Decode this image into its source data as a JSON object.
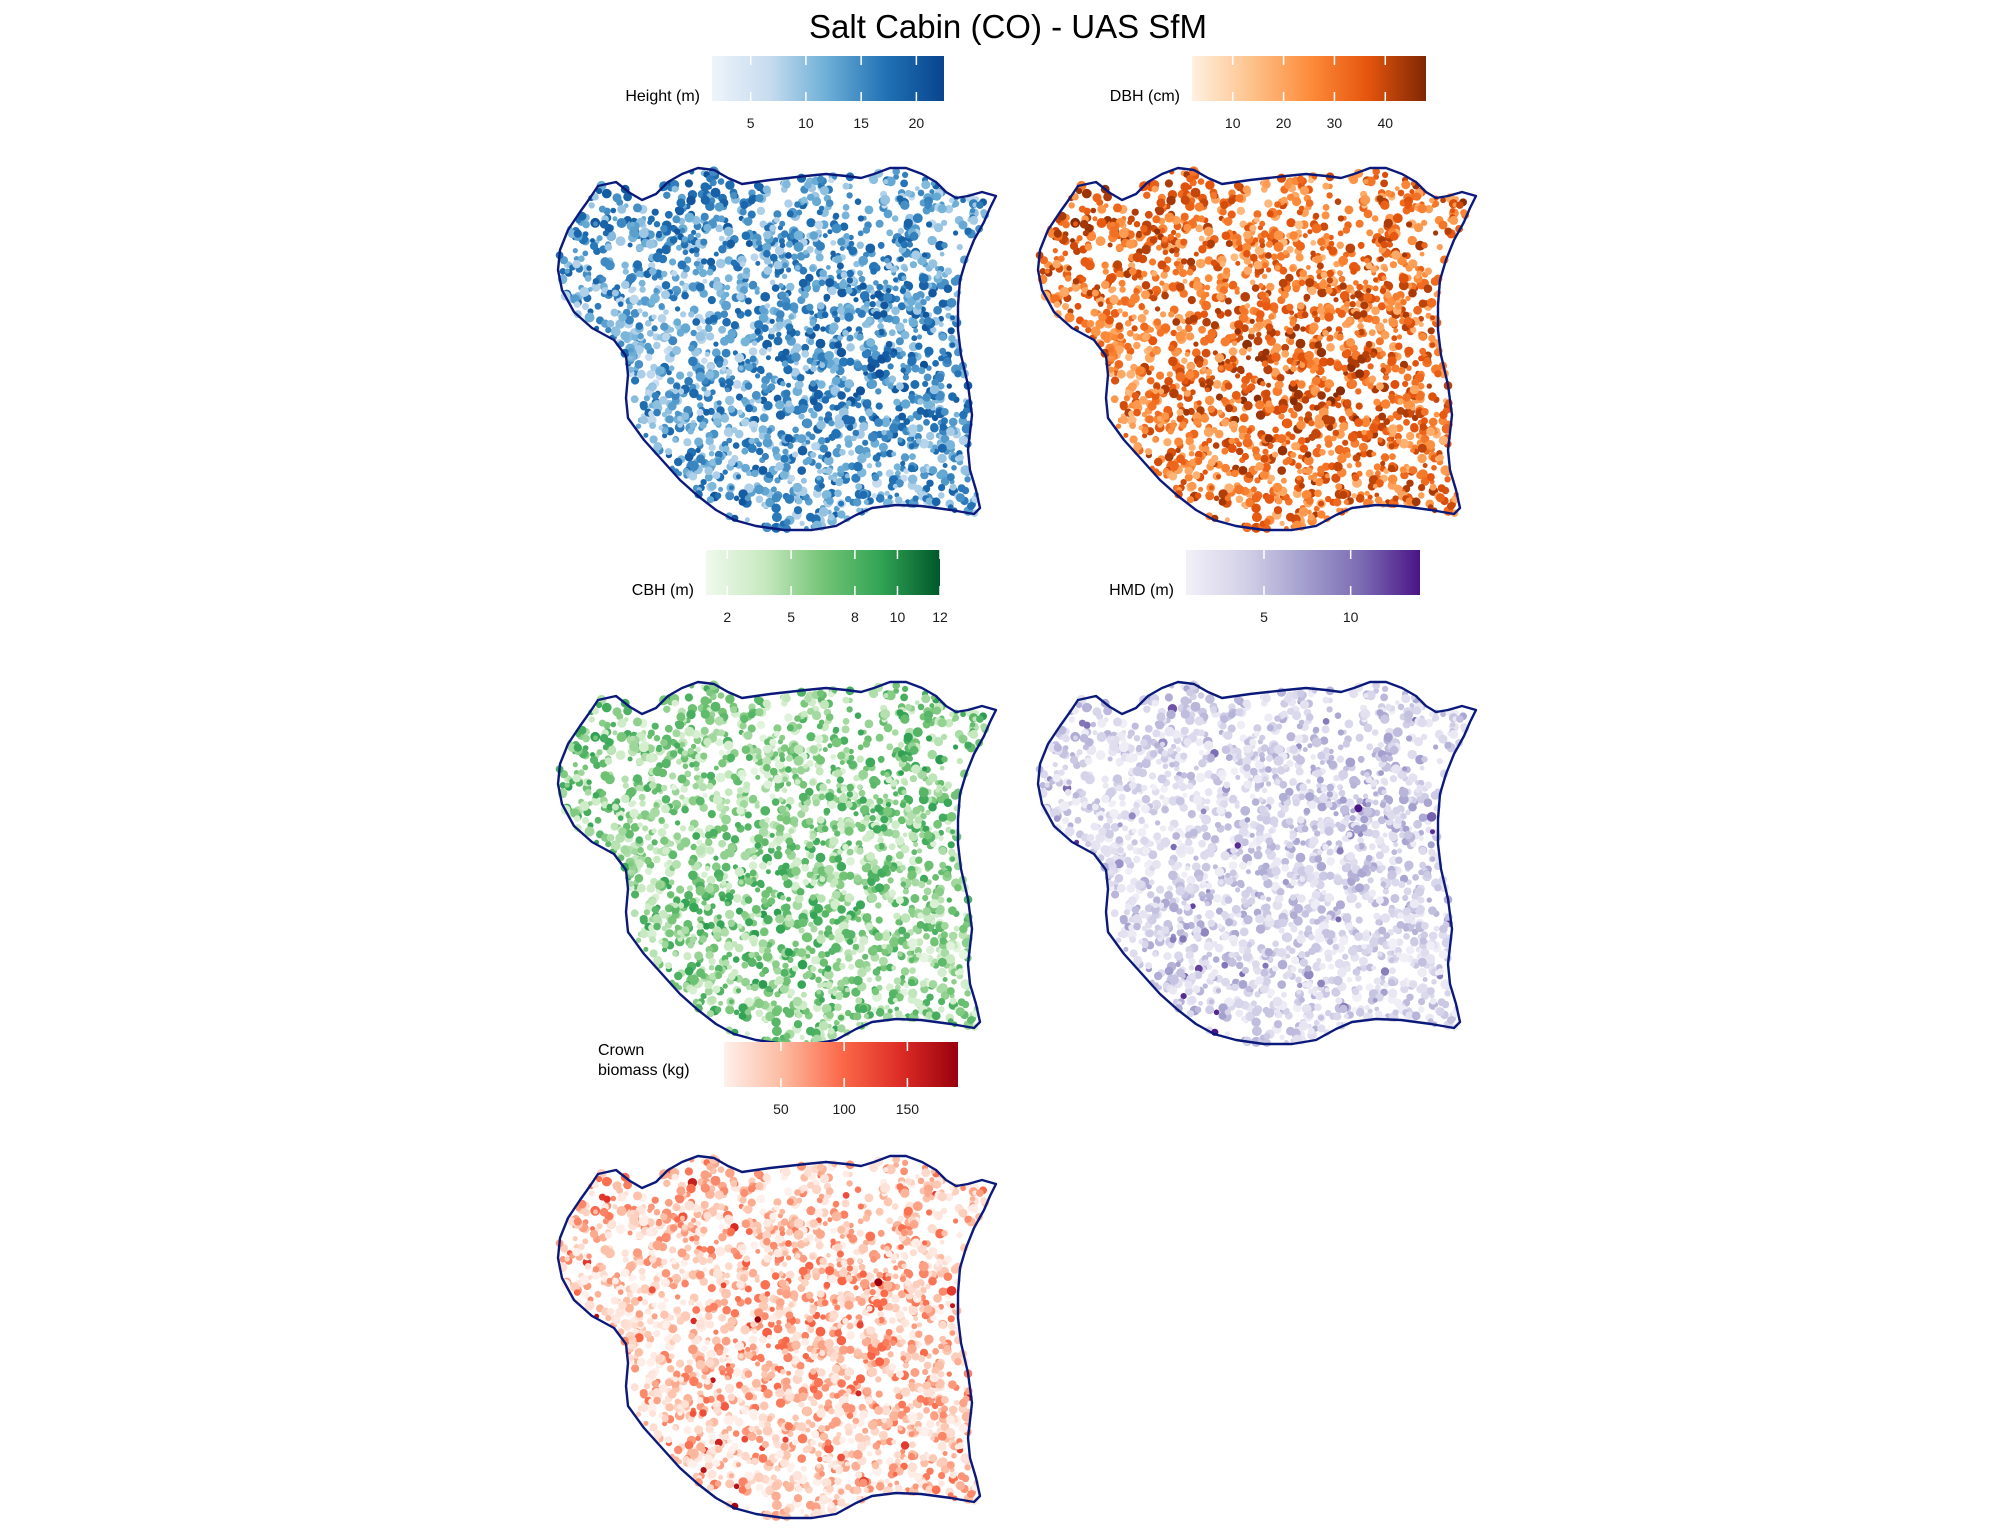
{
  "title": "Salt Cabin (CO) - UAS SfM",
  "boundary_color": "#0b1a7a",
  "panels": [
    {
      "id": "height",
      "legend_title": [
        "Height (m)"
      ],
      "colors": [
        "#eef4fb",
        "#c6dbef",
        "#6baed6",
        "#2171b5",
        "#08458e"
      ],
      "range": [
        1.5,
        22.5
      ],
      "ticks": [
        5,
        10,
        15,
        20
      ],
      "tick_labels": [
        "5",
        "10",
        "15",
        "20"
      ]
    },
    {
      "id": "dbh",
      "legend_title": [
        "DBH (cm)"
      ],
      "colors": [
        "#fff0e0",
        "#fdc38d",
        "#fd8d3c",
        "#e6550d",
        "#7f2704"
      ],
      "range": [
        2,
        48
      ],
      "ticks": [
        10,
        20,
        30,
        40
      ],
      "tick_labels": [
        "10",
        "20",
        "30",
        "40"
      ]
    },
    {
      "id": "cbh",
      "legend_title": [
        "CBH (m)"
      ],
      "colors": [
        "#f0f9ed",
        "#c7e9c0",
        "#74c476",
        "#31a354",
        "#00582a"
      ],
      "range": [
        1,
        12
      ],
      "ticks": [
        2,
        5,
        8,
        10,
        12
      ],
      "tick_labels": [
        "2",
        "5",
        "8",
        "10",
        "12"
      ]
    },
    {
      "id": "hmd",
      "legend_title": [
        "HMD (m)"
      ],
      "colors": [
        "#f2f0f7",
        "#d3d1e8",
        "#a4a0cf",
        "#7b6bb3",
        "#4a1486"
      ],
      "range": [
        0.5,
        14
      ],
      "ticks": [
        5,
        10
      ],
      "tick_labels": [
        "5",
        "10"
      ]
    },
    {
      "id": "biomass",
      "legend_title": [
        "Crown",
        "biomass (kg)"
      ],
      "colors": [
        "#fff0eb",
        "#fcbba1",
        "#fb6a4a",
        "#de2d26",
        "#99000d"
      ],
      "range": [
        5,
        190
      ],
      "ticks": [
        50,
        100,
        150
      ],
      "tick_labels": [
        "50",
        "100",
        "150"
      ]
    }
  ]
}
